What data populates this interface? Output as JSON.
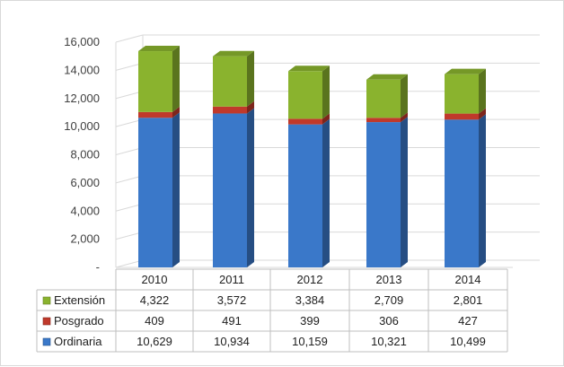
{
  "chart_data": {
    "type": "bar",
    "stacked": true,
    "three_d": true,
    "categories": [
      "2010",
      "2011",
      "2012",
      "2013",
      "2014"
    ],
    "series": [
      {
        "name": "Ordinaria",
        "values": [
          10629,
          10934,
          10159,
          10321,
          10499
        ],
        "color": "#3a78c9"
      },
      {
        "name": "Posgrado",
        "values": [
          409,
          491,
          399,
          306,
          427
        ],
        "color": "#c0392b"
      },
      {
        "name": "Extensión",
        "values": [
          4322,
          3572,
          3384,
          2709,
          2801
        ],
        "color": "#8ab32e"
      }
    ],
    "table_rows": [
      {
        "name": "Extensión",
        "values": [
          "4,322",
          "3,572",
          "3,384",
          "2,709",
          "2,801"
        ],
        "color": "#8ab32e"
      },
      {
        "name": "Posgrado",
        "values": [
          "409",
          "491",
          "399",
          "306",
          "427"
        ],
        "color": "#c0392b"
      },
      {
        "name": "Ordinaria",
        "values": [
          "10,629",
          "10,934",
          "10,159",
          "10,321",
          "10,499"
        ],
        "color": "#3a78c9"
      }
    ],
    "ylim": [
      0,
      16000
    ],
    "y_ticks": [
      "-",
      "2,000",
      "4,000",
      "6,000",
      "8,000",
      "10,000",
      "12,000",
      "14,000",
      "16,000"
    ],
    "y_tick_values": [
      0,
      2000,
      4000,
      6000,
      8000,
      10000,
      12000,
      14000,
      16000
    ],
    "grid": true,
    "legend": "data-table"
  }
}
